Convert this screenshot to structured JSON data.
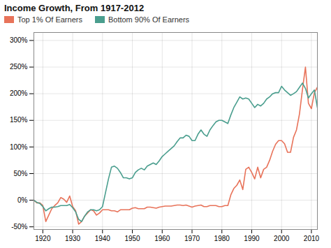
{
  "chart_data": {
    "type": "line",
    "title": "Income Growth, From 1917-2012",
    "x": [
      1917,
      1918,
      1919,
      1920,
      1921,
      1922,
      1923,
      1924,
      1925,
      1926,
      1927,
      1928,
      1929,
      1930,
      1931,
      1932,
      1933,
      1934,
      1935,
      1936,
      1937,
      1938,
      1939,
      1940,
      1941,
      1942,
      1943,
      1944,
      1945,
      1946,
      1947,
      1948,
      1949,
      1950,
      1951,
      1952,
      1953,
      1954,
      1955,
      1956,
      1957,
      1958,
      1959,
      1960,
      1961,
      1962,
      1963,
      1964,
      1965,
      1966,
      1967,
      1968,
      1969,
      1970,
      1971,
      1972,
      1973,
      1974,
      1975,
      1976,
      1977,
      1978,
      1979,
      1980,
      1981,
      1982,
      1983,
      1984,
      1985,
      1986,
      1987,
      1988,
      1989,
      1990,
      1991,
      1992,
      1993,
      1994,
      1995,
      1996,
      1997,
      1998,
      1999,
      2000,
      2001,
      2002,
      2003,
      2004,
      2005,
      2006,
      2007,
      2008,
      2009,
      2010,
      2011,
      2012
    ],
    "series": [
      {
        "name": "Top 1% Of Earners",
        "color": "#E8735A",
        "values": [
          0.0,
          -0.05,
          -0.05,
          -0.1,
          -0.4,
          -0.28,
          -0.16,
          -0.1,
          -0.05,
          0.05,
          0.02,
          -0.04,
          0.08,
          -0.12,
          -0.2,
          -0.45,
          -0.4,
          -0.3,
          -0.24,
          -0.18,
          -0.2,
          -0.28,
          -0.24,
          -0.18,
          -0.18,
          -0.18,
          -0.2,
          -0.2,
          -0.22,
          -0.18,
          -0.18,
          -0.18,
          -0.18,
          -0.15,
          -0.14,
          -0.16,
          -0.16,
          -0.16,
          -0.13,
          -0.13,
          -0.14,
          -0.15,
          -0.13,
          -0.12,
          -0.11,
          -0.11,
          -0.11,
          -0.1,
          -0.09,
          -0.09,
          -0.1,
          -0.09,
          -0.11,
          -0.13,
          -0.11,
          -0.1,
          -0.09,
          -0.12,
          -0.12,
          -0.1,
          -0.1,
          -0.1,
          -0.12,
          -0.12,
          -0.1,
          -0.1,
          0.1,
          0.22,
          0.28,
          0.38,
          0.2,
          0.58,
          0.62,
          0.52,
          0.4,
          0.62,
          0.42,
          0.58,
          0.62,
          0.75,
          0.92,
          1.05,
          1.12,
          1.12,
          1.06,
          0.9,
          0.9,
          1.18,
          1.32,
          1.62,
          2.08,
          2.5,
          1.82,
          1.72,
          2.02,
          2.12
        ]
      },
      {
        "name": "Bottom 90% Of Earners",
        "color": "#4A9E8E",
        "values": [
          0.0,
          -0.04,
          -0.06,
          -0.12,
          -0.2,
          -0.16,
          -0.13,
          -0.13,
          -0.12,
          -0.1,
          -0.1,
          -0.1,
          -0.08,
          -0.14,
          -0.22,
          -0.36,
          -0.4,
          -0.3,
          -0.22,
          -0.18,
          -0.18,
          -0.2,
          -0.18,
          -0.12,
          0.14,
          0.4,
          0.62,
          0.64,
          0.6,
          0.52,
          0.42,
          0.42,
          0.4,
          0.42,
          0.52,
          0.57,
          0.6,
          0.57,
          0.64,
          0.67,
          0.7,
          0.67,
          0.74,
          0.82,
          0.87,
          0.92,
          0.97,
          1.02,
          1.1,
          1.17,
          1.17,
          1.22,
          1.2,
          1.12,
          1.12,
          1.24,
          1.32,
          1.24,
          1.2,
          1.32,
          1.4,
          1.47,
          1.5,
          1.5,
          1.47,
          1.44,
          1.6,
          1.74,
          1.84,
          1.94,
          1.9,
          1.92,
          1.9,
          1.82,
          1.74,
          1.8,
          1.77,
          1.82,
          1.9,
          1.94,
          2.0,
          2.02,
          2.02,
          2.14,
          2.07,
          2.02,
          1.97,
          2.0,
          2.04,
          2.12,
          2.2,
          2.1,
          1.92,
          2.0,
          2.07,
          1.74
        ]
      }
    ],
    "xlim": [
      1917,
      2012
    ],
    "xticks": [
      1920,
      1930,
      1940,
      1950,
      1960,
      1970,
      1980,
      1990,
      2000,
      2010
    ],
    "ylim": [
      -0.55,
      3.15
    ],
    "yticks": [
      {
        "value": -0.5,
        "label": "-50%"
      },
      {
        "value": 0.0,
        "label": "0%"
      },
      {
        "value": 0.5,
        "label": "50%"
      },
      {
        "value": 1.0,
        "label": "100%"
      },
      {
        "value": 1.5,
        "label": "150%"
      },
      {
        "value": 2.0,
        "label": "200%"
      },
      {
        "value": 2.5,
        "label": "250%"
      },
      {
        "value": 3.0,
        "label": "300%"
      }
    ],
    "grid": true,
    "legend": "top"
  }
}
